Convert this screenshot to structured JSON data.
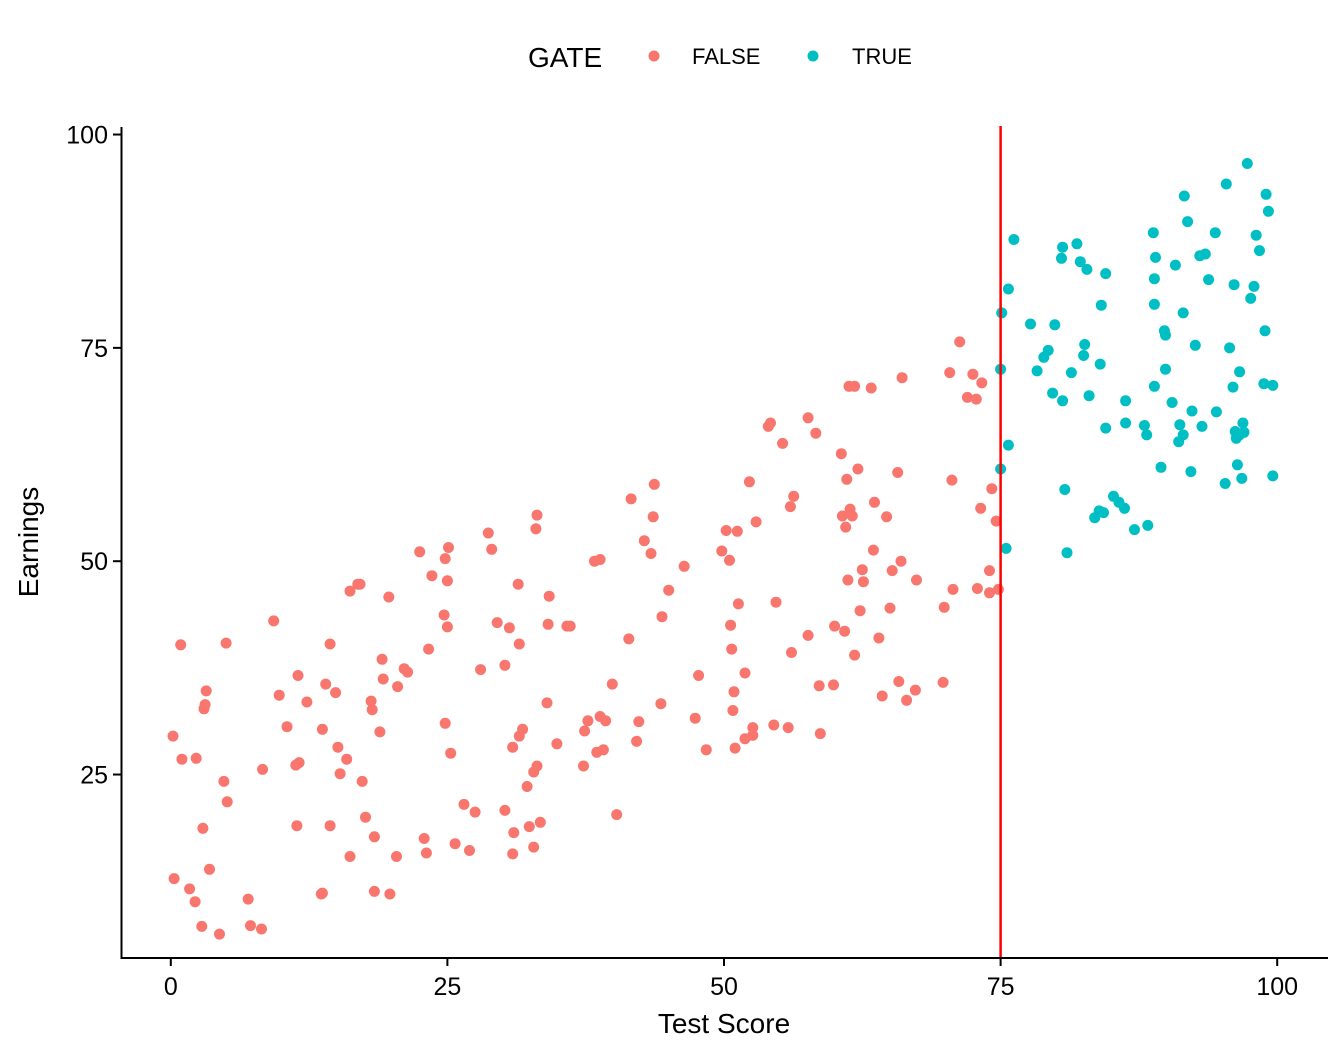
{
  "chart_data": {
    "type": "scatter",
    "xlabel": "Test Score",
    "ylabel": "Earnings",
    "xlim": [
      -4.5,
      104.5
    ],
    "ylim": [
      3.5,
      101
    ],
    "x_ticks": [
      0,
      25,
      50,
      75,
      100
    ],
    "y_ticks": [
      25,
      50,
      75,
      100
    ],
    "grid": false,
    "legend": {
      "title": "GATE",
      "position": "top",
      "entries": [
        {
          "label": "FALSE",
          "color": "#F8766D"
        },
        {
          "label": "TRUE",
          "color": "#00BFC4"
        }
      ]
    },
    "cutoff_line": {
      "x": 75,
      "color": "#FF0000"
    },
    "series": [
      {
        "name": "FALSE",
        "color": "#F8766D",
        "points": [
          [
            0.2,
            29.5
          ],
          [
            0.3,
            12.8
          ],
          [
            0.9,
            40.2
          ],
          [
            1.0,
            26.8
          ],
          [
            1.7,
            11.6
          ],
          [
            2.2,
            10.1
          ],
          [
            2.3,
            26.9
          ],
          [
            2.8,
            7.2
          ],
          [
            2.9,
            18.7
          ],
          [
            3.0,
            32.7
          ],
          [
            3.1,
            33.2
          ],
          [
            3.2,
            34.8
          ],
          [
            3.5,
            13.9
          ],
          [
            4.4,
            6.3
          ],
          [
            4.8,
            24.2
          ],
          [
            5.0,
            40.4
          ],
          [
            5.1,
            21.8
          ],
          [
            7.0,
            10.4
          ],
          [
            7.2,
            7.3
          ],
          [
            8.2,
            6.9
          ],
          [
            8.3,
            25.6
          ],
          [
            9.3,
            43.0
          ],
          [
            9.8,
            34.3
          ],
          [
            10.5,
            30.6
          ],
          [
            11.3,
            26.1
          ],
          [
            11.4,
            19.0
          ],
          [
            11.5,
            36.6
          ],
          [
            11.6,
            26.4
          ],
          [
            12.3,
            33.5
          ],
          [
            13.6,
            11.0
          ],
          [
            13.7,
            11.1
          ],
          [
            13.7,
            30.3
          ],
          [
            14.0,
            35.6
          ],
          [
            14.4,
            19.0
          ],
          [
            14.4,
            40.3
          ],
          [
            14.9,
            34.6
          ],
          [
            15.1,
            28.2
          ],
          [
            15.3,
            25.1
          ],
          [
            15.9,
            26.8
          ],
          [
            16.2,
            15.4
          ],
          [
            16.2,
            46.5
          ],
          [
            16.9,
            47.3
          ],
          [
            17.1,
            47.3
          ],
          [
            17.3,
            24.2
          ],
          [
            17.6,
            20.0
          ],
          [
            18.1,
            33.6
          ],
          [
            18.2,
            32.6
          ],
          [
            18.4,
            17.7
          ],
          [
            18.4,
            11.3
          ],
          [
            18.9,
            30.0
          ],
          [
            19.1,
            38.5
          ],
          [
            19.2,
            36.2
          ],
          [
            19.7,
            45.8
          ],
          [
            19.8,
            11.0
          ],
          [
            20.4,
            15.4
          ],
          [
            20.5,
            35.3
          ],
          [
            21.1,
            37.4
          ],
          [
            21.4,
            37.0
          ],
          [
            22.5,
            51.1
          ],
          [
            22.9,
            17.5
          ],
          [
            23.1,
            15.8
          ],
          [
            23.3,
            39.7
          ],
          [
            23.6,
            48.3
          ],
          [
            24.7,
            43.7
          ],
          [
            24.8,
            50.3
          ],
          [
            24.8,
            31.0
          ],
          [
            25.0,
            47.7
          ],
          [
            25.0,
            42.3
          ],
          [
            25.1,
            51.6
          ],
          [
            25.3,
            27.5
          ],
          [
            25.7,
            16.9
          ],
          [
            26.5,
            21.5
          ],
          [
            27.0,
            16.1
          ],
          [
            27.5,
            20.6
          ],
          [
            28.0,
            37.3
          ],
          [
            28.7,
            53.3
          ],
          [
            29.0,
            51.4
          ],
          [
            29.5,
            42.8
          ],
          [
            30.2,
            37.8
          ],
          [
            30.2,
            20.8
          ],
          [
            30.6,
            42.2
          ],
          [
            30.9,
            28.2
          ],
          [
            31.0,
            18.2
          ],
          [
            30.9,
            15.7
          ],
          [
            31.4,
            47.3
          ],
          [
            31.5,
            40.3
          ],
          [
            31.5,
            29.5
          ],
          [
            31.8,
            30.3
          ],
          [
            32.2,
            23.6
          ],
          [
            32.4,
            18.9
          ],
          [
            32.8,
            25.3
          ],
          [
            32.8,
            16.5
          ],
          [
            33.0,
            53.8
          ],
          [
            33.1,
            26.0
          ],
          [
            33.1,
            55.4
          ],
          [
            33.4,
            19.4
          ],
          [
            34.0,
            33.4
          ],
          [
            34.1,
            42.6
          ],
          [
            34.2,
            45.9
          ],
          [
            34.9,
            28.6
          ],
          [
            35.8,
            42.4
          ],
          [
            36.1,
            42.4
          ],
          [
            37.3,
            26.0
          ],
          [
            37.4,
            30.1
          ],
          [
            37.7,
            31.3
          ],
          [
            38.3,
            50.0
          ],
          [
            38.5,
            27.6
          ],
          [
            38.8,
            50.2
          ],
          [
            38.8,
            31.8
          ],
          [
            39.1,
            27.9
          ],
          [
            39.3,
            31.3
          ],
          [
            39.9,
            35.6
          ],
          [
            40.3,
            20.3
          ],
          [
            41.4,
            40.9
          ],
          [
            41.6,
            57.3
          ],
          [
            42.1,
            28.9
          ],
          [
            42.3,
            31.2
          ],
          [
            42.8,
            52.4
          ],
          [
            43.4,
            50.9
          ],
          [
            43.6,
            55.2
          ],
          [
            43.7,
            59.0
          ],
          [
            44.3,
            33.3
          ],
          [
            44.4,
            43.5
          ],
          [
            45.0,
            46.6
          ],
          [
            46.4,
            49.4
          ],
          [
            47.4,
            31.6
          ],
          [
            47.7,
            36.6
          ],
          [
            48.4,
            27.9
          ],
          [
            49.8,
            51.2
          ],
          [
            50.2,
            53.6
          ],
          [
            50.5,
            50.1
          ],
          [
            50.6,
            42.5
          ],
          [
            50.7,
            39.7
          ],
          [
            50.8,
            32.5
          ],
          [
            50.9,
            34.7
          ],
          [
            51.0,
            28.1
          ],
          [
            51.2,
            53.5
          ],
          [
            51.3,
            45.0
          ],
          [
            51.9,
            36.9
          ],
          [
            51.9,
            29.2
          ],
          [
            52.6,
            30.5
          ],
          [
            52.6,
            29.6
          ],
          [
            52.9,
            54.6
          ],
          [
            52.3,
            59.3
          ],
          [
            54.0,
            65.8
          ],
          [
            54.2,
            66.2
          ],
          [
            54.5,
            30.8
          ],
          [
            54.7,
            45.2
          ],
          [
            55.3,
            63.8
          ],
          [
            55.8,
            30.5
          ],
          [
            56.0,
            56.4
          ],
          [
            56.1,
            39.3
          ],
          [
            56.3,
            57.6
          ],
          [
            57.6,
            66.8
          ],
          [
            57.6,
            41.3
          ],
          [
            58.3,
            65.0
          ],
          [
            58.6,
            35.4
          ],
          [
            58.7,
            29.8
          ],
          [
            59.9,
            35.5
          ],
          [
            60.0,
            42.4
          ],
          [
            60.6,
            62.6
          ],
          [
            60.7,
            55.3
          ],
          [
            60.9,
            41.8
          ],
          [
            61.0,
            54.0
          ],
          [
            61.1,
            59.6
          ],
          [
            61.2,
            47.8
          ],
          [
            61.3,
            70.5
          ],
          [
            61.4,
            56.1
          ],
          [
            61.6,
            55.3
          ],
          [
            61.8,
            70.5
          ],
          [
            61.8,
            39.0
          ],
          [
            62.1,
            60.8
          ],
          [
            62.3,
            44.2
          ],
          [
            62.5,
            49.0
          ],
          [
            62.6,
            47.6
          ],
          [
            63.3,
            70.3
          ],
          [
            63.5,
            51.3
          ],
          [
            63.6,
            56.9
          ],
          [
            64.0,
            41.0
          ],
          [
            64.3,
            34.2
          ],
          [
            64.7,
            55.2
          ],
          [
            65.0,
            44.5
          ],
          [
            65.2,
            48.9
          ],
          [
            65.7,
            60.4
          ],
          [
            65.8,
            35.9
          ],
          [
            66.0,
            50.0
          ],
          [
            66.1,
            71.5
          ],
          [
            66.5,
            33.7
          ],
          [
            67.3,
            34.9
          ],
          [
            67.4,
            47.8
          ],
          [
            69.8,
            35.8
          ],
          [
            69.9,
            44.6
          ],
          [
            70.4,
            72.1
          ],
          [
            70.6,
            59.5
          ],
          [
            70.7,
            46.7
          ],
          [
            71.3,
            75.7
          ],
          [
            72.0,
            69.2
          ],
          [
            72.5,
            71.9
          ],
          [
            72.8,
            69.0
          ],
          [
            72.9,
            46.8
          ],
          [
            73.2,
            56.2
          ],
          [
            73.3,
            70.9
          ],
          [
            74.0,
            46.3
          ],
          [
            74.0,
            48.9
          ],
          [
            74.2,
            58.5
          ],
          [
            74.6,
            54.7
          ],
          [
            74.8,
            46.7
          ]
        ]
      },
      {
        "name": "TRUE",
        "color": "#00BFC4",
        "points": [
          [
            75.0,
            60.8
          ],
          [
            75.0,
            72.5
          ],
          [
            75.1,
            79.1
          ],
          [
            75.5,
            51.5
          ],
          [
            75.7,
            63.6
          ],
          [
            75.7,
            81.9
          ],
          [
            76.2,
            87.7
          ],
          [
            77.7,
            77.8
          ],
          [
            78.3,
            72.3
          ],
          [
            78.9,
            73.9
          ],
          [
            79.3,
            74.7
          ],
          [
            79.7,
            69.7
          ],
          [
            79.9,
            77.7
          ],
          [
            80.5,
            85.5
          ],
          [
            80.6,
            86.8
          ],
          [
            80.6,
            68.8
          ],
          [
            80.8,
            58.4
          ],
          [
            81.0,
            51.0
          ],
          [
            81.4,
            72.1
          ],
          [
            81.9,
            87.2
          ],
          [
            82.2,
            85.1
          ],
          [
            82.5,
            74.1
          ],
          [
            82.6,
            75.4
          ],
          [
            82.8,
            84.2
          ],
          [
            83.0,
            69.4
          ],
          [
            83.5,
            55.1
          ],
          [
            83.9,
            55.9
          ],
          [
            84.0,
            73.1
          ],
          [
            84.1,
            80.0
          ],
          [
            84.3,
            55.7
          ],
          [
            84.5,
            83.7
          ],
          [
            84.5,
            65.6
          ],
          [
            85.2,
            57.6
          ],
          [
            85.7,
            56.9
          ],
          [
            86.2,
            56.2
          ],
          [
            86.3,
            66.2
          ],
          [
            86.3,
            68.8
          ],
          [
            87.1,
            53.7
          ],
          [
            88.0,
            65.9
          ],
          [
            88.2,
            64.8
          ],
          [
            88.3,
            54.2
          ],
          [
            88.8,
            88.5
          ],
          [
            88.9,
            70.5
          ],
          [
            88.9,
            80.1
          ],
          [
            88.9,
            83.1
          ],
          [
            89.0,
            85.6
          ],
          [
            89.5,
            61.0
          ],
          [
            89.8,
            77.0
          ],
          [
            89.9,
            76.5
          ],
          [
            89.9,
            72.5
          ],
          [
            90.5,
            68.6
          ],
          [
            90.8,
            84.7
          ],
          [
            91.1,
            64.0
          ],
          [
            91.2,
            66.0
          ],
          [
            91.5,
            79.1
          ],
          [
            91.5,
            64.8
          ],
          [
            91.6,
            92.8
          ],
          [
            91.9,
            89.8
          ],
          [
            92.2,
            60.5
          ],
          [
            92.3,
            67.6
          ],
          [
            92.6,
            75.3
          ],
          [
            93.0,
            85.8
          ],
          [
            93.2,
            65.8
          ],
          [
            93.5,
            86.0
          ],
          [
            93.8,
            83.0
          ],
          [
            94.4,
            88.5
          ],
          [
            94.5,
            67.5
          ],
          [
            95.3,
            59.1
          ],
          [
            95.4,
            94.2
          ],
          [
            95.7,
            75.0
          ],
          [
            96.0,
            70.4
          ],
          [
            96.1,
            82.4
          ],
          [
            96.2,
            65.2
          ],
          [
            96.3,
            64.4
          ],
          [
            96.4,
            61.3
          ],
          [
            96.6,
            64.8
          ],
          [
            96.6,
            72.2
          ],
          [
            96.8,
            59.7
          ],
          [
            96.9,
            66.2
          ],
          [
            97.0,
            65.1
          ],
          [
            97.3,
            96.6
          ],
          [
            97.6,
            80.8
          ],
          [
            97.9,
            82.2
          ],
          [
            98.1,
            88.2
          ],
          [
            98.4,
            86.4
          ],
          [
            98.8,
            70.8
          ],
          [
            98.9,
            77.0
          ],
          [
            99.0,
            93.0
          ],
          [
            99.2,
            91.0
          ],
          [
            99.6,
            70.6
          ],
          [
            99.6,
            60.0
          ]
        ]
      }
    ]
  }
}
